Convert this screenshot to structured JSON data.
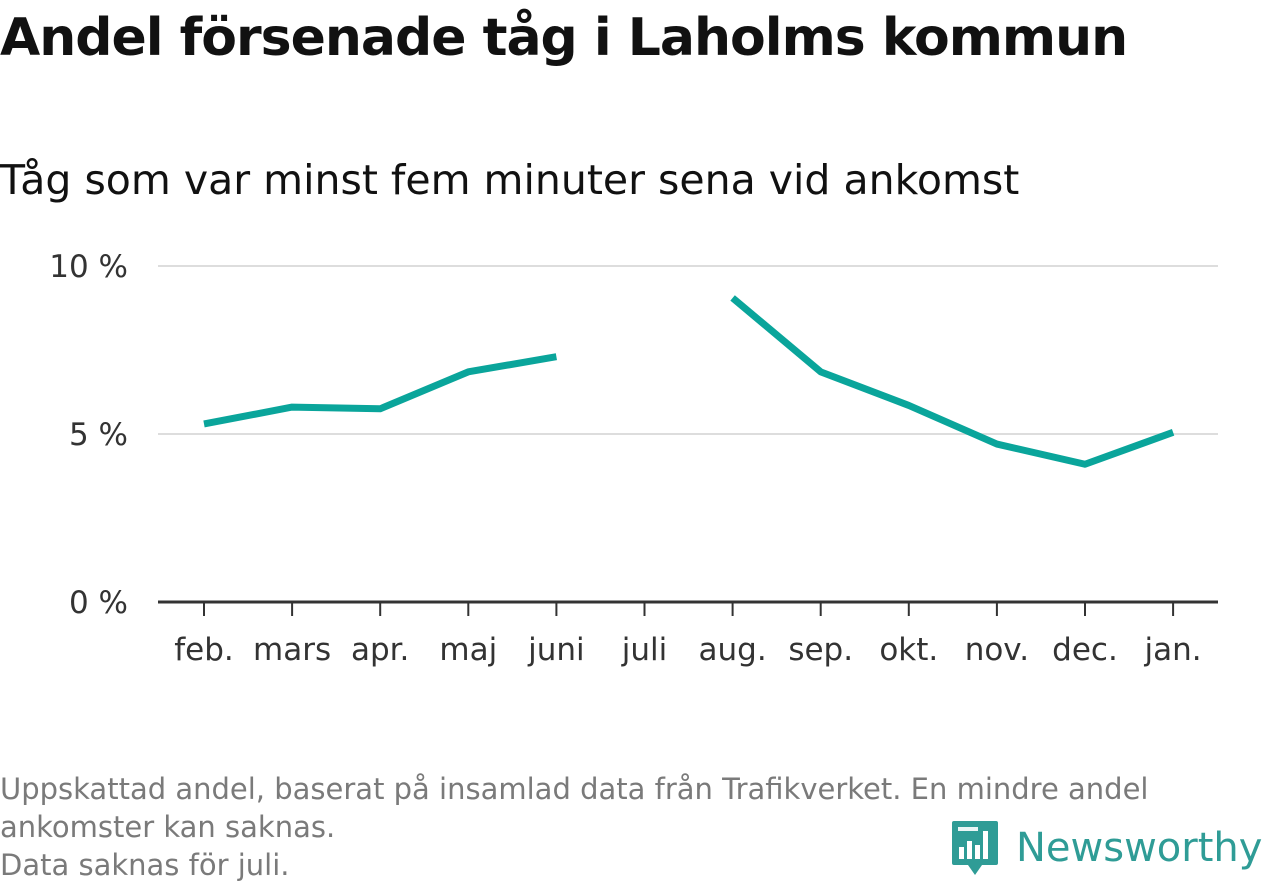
{
  "title": "Andel försenade tåg i Laholms kommun",
  "subtitle": "Tåg som var minst fem minuter sena vid ankomst",
  "footer": {
    "note_line1": "Uppskattad andel, baserat på insamlad data från Trafikverket. En mindre andel",
    "note_line2": "ankomster kan saknas.",
    "note_line3": "Data saknas för juli."
  },
  "brand": {
    "name": "Newsworthy",
    "icon": "bar-chart-speech-bubble-icon",
    "color": "#2f9c96"
  },
  "colors": {
    "line": "#0aa59b",
    "grid": "#dddddd",
    "axis": "#333333"
  },
  "chart_data": {
    "type": "line",
    "categories": [
      "feb.",
      "mars",
      "apr.",
      "maj",
      "juni",
      "juli",
      "aug.",
      "sep.",
      "okt.",
      "nov.",
      "dec.",
      "jan."
    ],
    "series": [
      {
        "values": [
          5.3,
          5.8,
          5.75,
          6.85,
          7.3,
          null,
          9.05,
          6.85,
          5.85,
          4.7,
          4.1,
          5.05
        ]
      }
    ],
    "ylim": [
      0,
      10
    ],
    "yticks": [
      0,
      5,
      10
    ],
    "ytick_labels": [
      "0 %",
      "5 %",
      "10 %"
    ],
    "xlabel": "",
    "ylabel": "",
    "grid": true
  }
}
